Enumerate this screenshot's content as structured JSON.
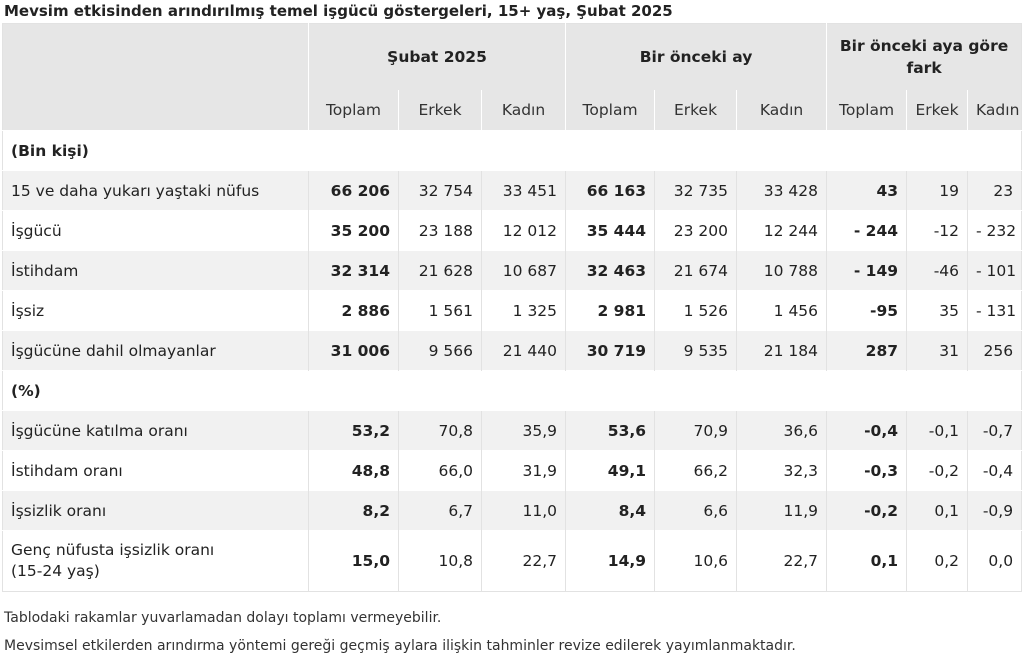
{
  "title": "Mevsim etkisinden arındırılmış temel işgücü göstergeleri, 15+ yaş, Şubat 2025",
  "groups": [
    "Şubat 2025",
    "Bir önceki ay",
    "Bir önceki aya göre fark"
  ],
  "subheaders": [
    "Toplam",
    "Erkek",
    "Kadın",
    "Toplam",
    "Erkek",
    "Kadın",
    "Toplam",
    "Erkek",
    "Kadın"
  ],
  "sections": {
    "count": "(Bin kişi)",
    "percent": "(%)"
  },
  "rows_count": [
    {
      "label": "15 ve daha yukarı yaştaki nüfus",
      "values": [
        "66 206",
        "32 754",
        "33 451",
        "66 163",
        "32 735",
        "33 428",
        "43",
        "19",
        "23"
      ]
    },
    {
      "label": "İşgücü",
      "values": [
        "35 200",
        "23 188",
        "12 012",
        "35 444",
        "23 200",
        "12 244",
        "- 244",
        "-12",
        "- 232"
      ]
    },
    {
      "label": "İstihdam",
      "values": [
        "32 314",
        "21 628",
        "10 687",
        "32 463",
        "21 674",
        "10 788",
        "- 149",
        "-46",
        "- 101"
      ]
    },
    {
      "label": "İşsiz",
      "values": [
        "2 886",
        "1 561",
        "1 325",
        "2 981",
        "1 526",
        "1 456",
        "-95",
        "35",
        "- 131"
      ]
    },
    {
      "label": "İşgücüne dahil olmayanlar",
      "values": [
        "31 006",
        "9 566",
        "21 440",
        "30 719",
        "9 535",
        "21 184",
        "287",
        "31",
        "256"
      ]
    }
  ],
  "rows_percent": [
    {
      "label": "İşgücüne katılma oranı",
      "values": [
        "53,2",
        "70,8",
        "35,9",
        "53,6",
        "70,9",
        "36,6",
        "-0,4",
        "-0,1",
        "-0,7"
      ]
    },
    {
      "label": "İstihdam oranı",
      "values": [
        "48,8",
        "66,0",
        "31,9",
        "49,1",
        "66,2",
        "32,3",
        "-0,3",
        "-0,2",
        "-0,4"
      ]
    },
    {
      "label": "İşsizlik oranı",
      "values": [
        "8,2",
        "6,7",
        "11,0",
        "8,4",
        "6,6",
        "11,9",
        "-0,2",
        "0,1",
        "-0,9"
      ]
    },
    {
      "label": "Genç nüfusta işsizlik oranı",
      "label2": "(15-24 yaş)",
      "values": [
        "15,0",
        "10,8",
        "22,7",
        "14,9",
        "10,6",
        "22,7",
        "0,1",
        "0,2",
        "0,0"
      ]
    }
  ],
  "notes": [
    "Tablodaki rakamlar yuvarlamadan dolayı toplamı vermeyebilir.",
    "Mevsimsel etkilerden arındırma yöntemi gereği geçmiş aylara ilişkin tahminler revize edilerek yayımlanmaktadır."
  ]
}
